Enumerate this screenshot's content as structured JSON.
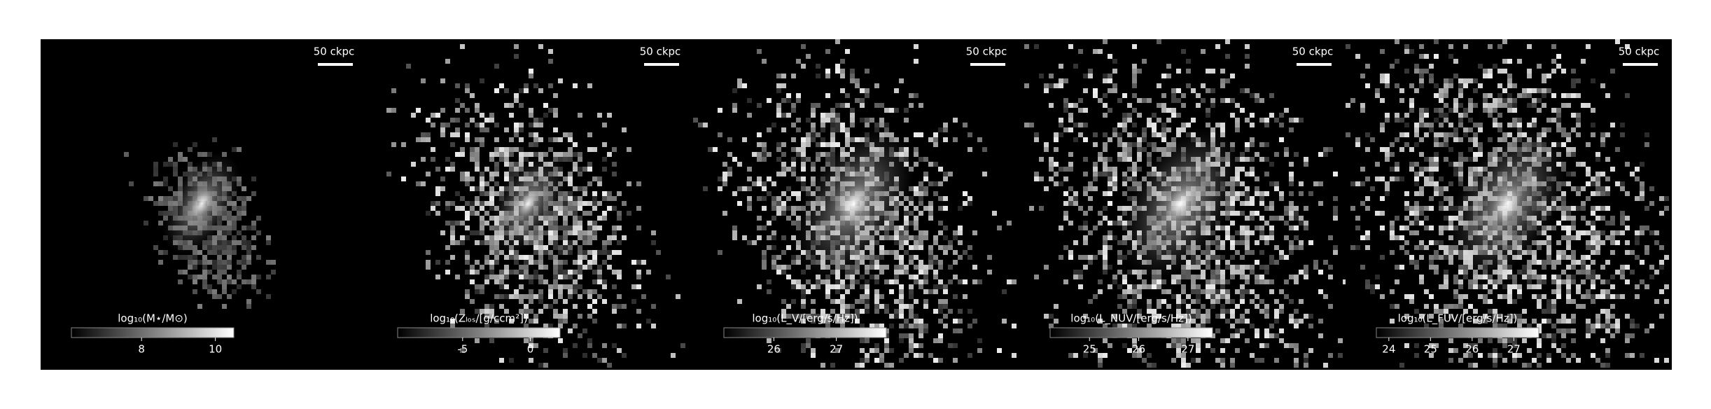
{
  "chart_data": [
    {
      "type": "image",
      "scale_bar": "50 ckpc",
      "colorbar": {
        "label": "log₁₀(M⋆/M⊙)",
        "lim": [
          6.1,
          10.5
        ],
        "ticks": [
          8,
          10
        ]
      }
    },
    {
      "type": "image",
      "scale_bar": "50 ckpc",
      "colorbar": {
        "label": "log₁₀(Zₗₒₛ/[g/ccm²])",
        "lim": [
          -9.8,
          2.2
        ],
        "ticks": [
          -5,
          0
        ]
      }
    },
    {
      "type": "image",
      "scale_bar": "50 ckpc",
      "colorbar": {
        "label": "log₁₀(L_V/[erg/s/Hz])",
        "lim": [
          25.2,
          27.8
        ],
        "ticks": [
          26,
          27
        ]
      }
    },
    {
      "type": "image",
      "scale_bar": "50 ckpc",
      "colorbar": {
        "label": "log₁₀(L_NUV/[erg/s/Hz])",
        "lim": [
          24.2,
          27.5
        ],
        "ticks": [
          25,
          26,
          27
        ]
      }
    },
    {
      "type": "image",
      "scale_bar": "50 ckpc",
      "colorbar": {
        "label": "log₁₀(L_FUV/[erg/s/Hz])",
        "lim": [
          23.7,
          27.6
        ],
        "ticks": [
          24,
          25,
          26,
          27
        ]
      }
    }
  ]
}
